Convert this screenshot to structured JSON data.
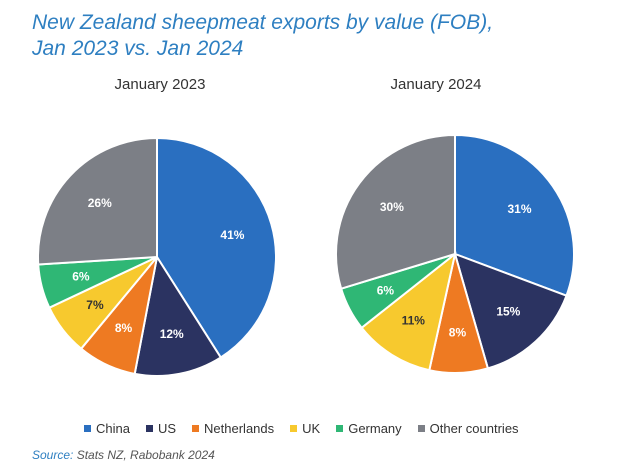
{
  "title_line1": "New Zealand sheepmeat exports by value (FOB),",
  "title_line2": "Jan 2023 vs. Jan 2024",
  "source_label": "Source:",
  "source_text": "Stats NZ, Rabobank 2024",
  "colors": {
    "China": "#2a6fc0",
    "US": "#2b3361",
    "Netherlands": "#ee7a22",
    "UK": "#f7c92e",
    "Germany": "#2fb775",
    "Other countries": "#7c7f86"
  },
  "legend": [
    "China",
    "US",
    "Netherlands",
    "UK",
    "Germany",
    "Other countries"
  ],
  "chart_data": [
    {
      "type": "pie",
      "title": "January 2023",
      "labels": [
        "China",
        "US",
        "Netherlands",
        "UK",
        "Germany",
        "Other countries"
      ],
      "values": [
        41,
        12,
        8,
        7,
        6,
        26
      ],
      "value_labels": [
        "41%",
        "12%",
        "8%",
        "7%",
        "6%",
        "26%"
      ]
    },
    {
      "type": "pie",
      "title": "January 2024",
      "labels": [
        "China",
        "US",
        "Netherlands",
        "UK",
        "Germany",
        "Other countries"
      ],
      "values": [
        31,
        15,
        8,
        11,
        6,
        30
      ],
      "value_labels": [
        "31%",
        "15%",
        "8%",
        "11%",
        "6%",
        "30%"
      ]
    }
  ]
}
